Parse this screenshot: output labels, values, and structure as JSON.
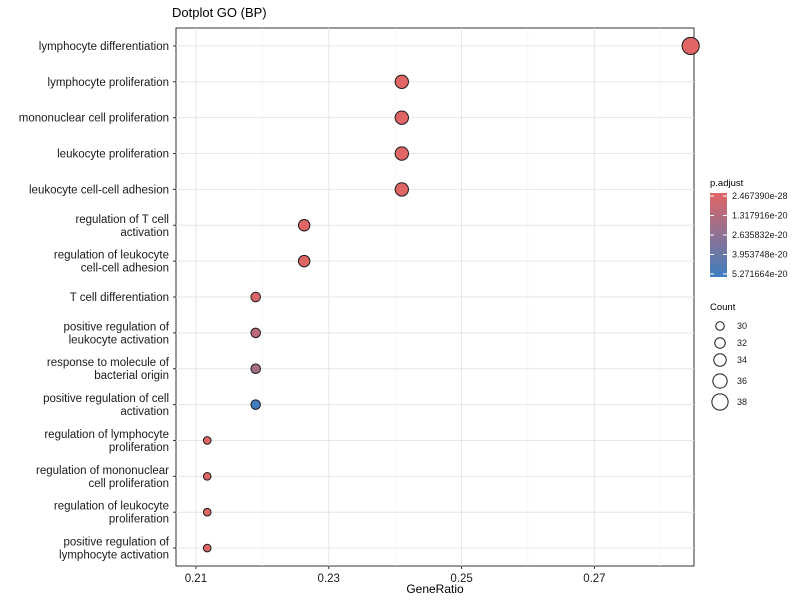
{
  "chart_data": {
    "type": "scatter",
    "title": "Dotplot GO (BP)",
    "xlabel": "GeneRatio",
    "ylabel": "",
    "xlim": [
      0.207,
      0.285
    ],
    "xticks": [
      0.21,
      0.23,
      0.25,
      0.27
    ],
    "xtick_labels": [
      "0.21",
      "0.23",
      "0.25",
      "0.27"
    ],
    "grid": true,
    "categories": [
      [
        "lymphocyte differentiation"
      ],
      [
        "lymphocyte proliferation"
      ],
      [
        "mononuclear cell proliferation"
      ],
      [
        "leukocyte proliferation"
      ],
      [
        "leukocyte cell-cell adhesion"
      ],
      [
        "regulation of T cell",
        "activation"
      ],
      [
        "regulation of leukocyte",
        "cell-cell adhesion"
      ],
      [
        "T cell differentiation"
      ],
      [
        "positive regulation of",
        "leukocyte activation"
      ],
      [
        "response to molecule of",
        "bacterial origin"
      ],
      [
        "positive regulation of cell",
        "activation"
      ],
      [
        "regulation of lymphocyte",
        "proliferation"
      ],
      [
        "regulation of mononuclear",
        "cell proliferation"
      ],
      [
        "regulation of leukocyte",
        "proliferation"
      ],
      [
        "positive regulation of",
        "lymphocyte activation"
      ]
    ],
    "x": [
      0.2845,
      0.241,
      0.241,
      0.241,
      0.241,
      0.2263,
      0.2263,
      0.219,
      0.219,
      0.219,
      0.219,
      0.2117,
      0.2117,
      0.2117,
      0.2117
    ],
    "count": [
      39,
      35,
      35,
      35,
      35,
      33,
      33,
      31,
      31,
      31,
      31,
      29,
      29,
      29,
      29
    ],
    "p_adjust": [
      2.5e-28,
      1e-25,
      1e-25,
      1e-25,
      1e-25,
      3e-23,
      3e-23,
      2.2e-21,
      1.1e-20,
      2e-20,
      5.2e-20,
      2.5e-25,
      2.5e-25,
      2.5e-25,
      2.5e-25
    ],
    "color_legend": {
      "title": "p.adjust",
      "labels": [
        "2.467390e-28",
        "1.317916e-20",
        "2.635832e-20",
        "3.953748e-20",
        "5.271664e-20"
      ],
      "values": [
        2.46739e-28,
        1.317916e-20,
        2.635832e-20,
        3.953748e-20,
        5.271664e-20
      ],
      "low_color": "#e06666",
      "high_color": "#3e7ec0"
    },
    "size_legend": {
      "title": "Count",
      "values": [
        30,
        32,
        34,
        36,
        38
      ],
      "labels": [
        "30",
        "32",
        "34",
        "36",
        "38"
      ]
    },
    "legend_position": "right"
  }
}
